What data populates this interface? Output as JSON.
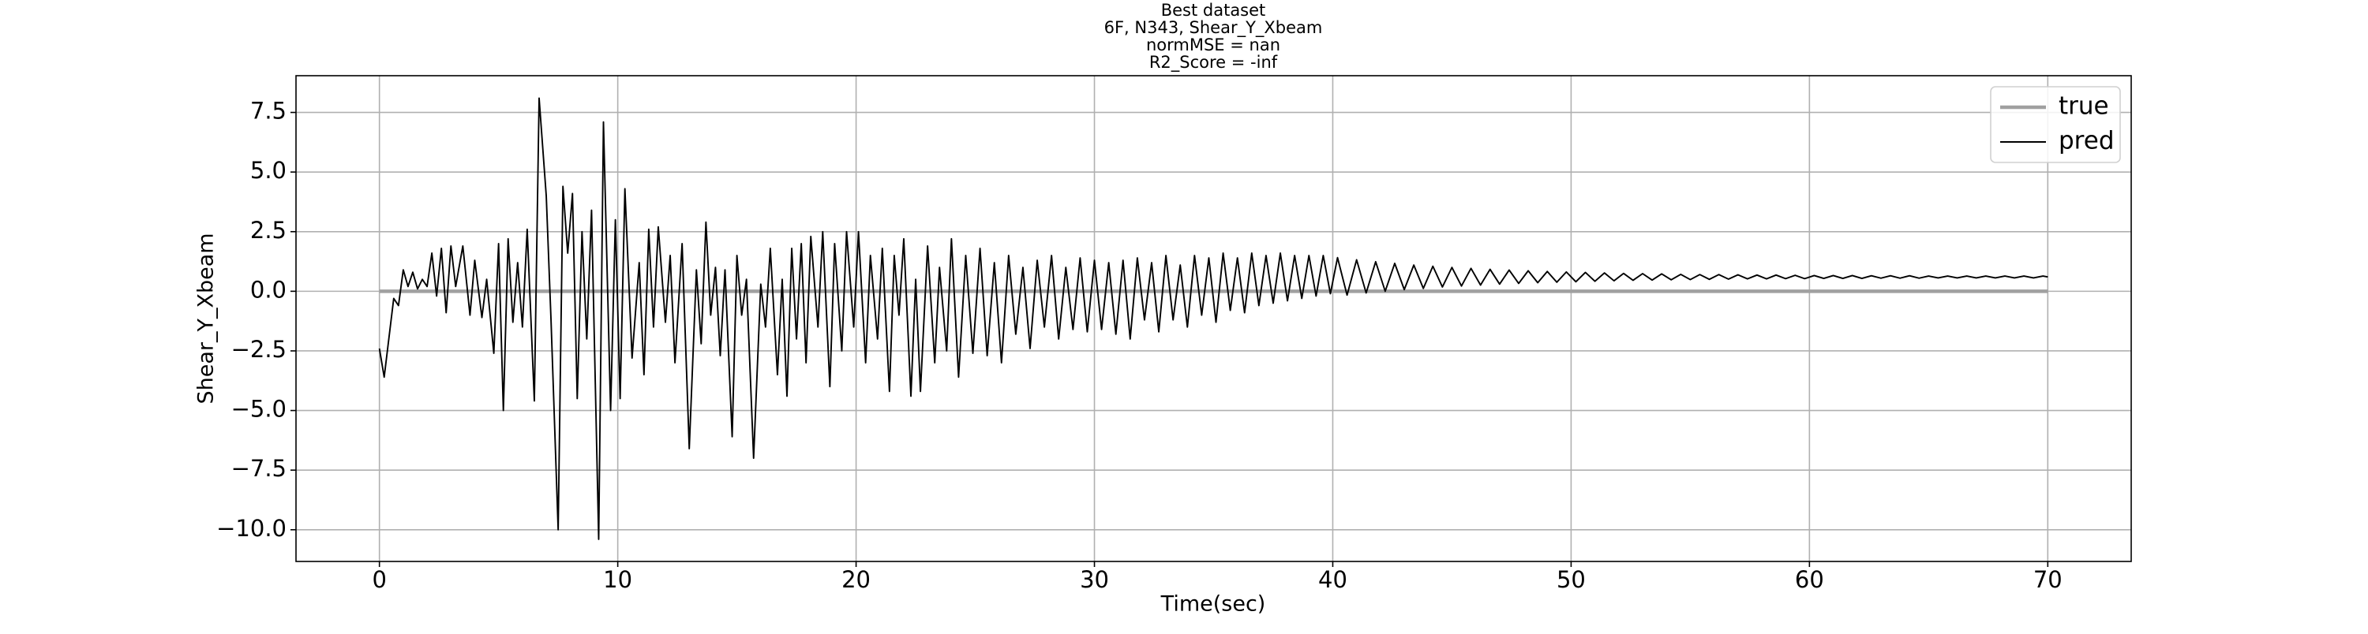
{
  "chart_data": {
    "type": "line",
    "title": [
      "Best dataset",
      "6F, N343, Shear_Y_Xbeam",
      "normMSE = nan",
      "R2_Score = -inf"
    ],
    "x_label": "Time(sec)",
    "y_label": "Shear_Y_Xbeam",
    "xlim": [
      -3.5,
      73.5
    ],
    "ylim": [
      -11.33,
      9.04
    ],
    "xticks": [
      0,
      10,
      20,
      30,
      40,
      50,
      60,
      70
    ],
    "yticks": [
      {
        "value": -10,
        "label": "−10.0"
      },
      {
        "value": -7.5,
        "label": "−7.5"
      },
      {
        "value": -5,
        "label": "−5.0"
      },
      {
        "value": -2.5,
        "label": "−2.5"
      },
      {
        "value": 0,
        "label": "0.0"
      },
      2.5,
      {
        "value": 5,
        "label": "5.0"
      },
      7.5
    ],
    "grid": true,
    "legend": "upper right",
    "series": [
      {
        "name": "true",
        "color": "#a0a0a0",
        "x": [
          0,
          70
        ],
        "values": [
          0,
          0
        ]
      },
      {
        "name": "pred",
        "color": "#000000",
        "x": [
          0,
          0.2,
          0.6,
          0.8,
          1.0,
          1.2,
          1.4,
          1.6,
          1.8,
          2.0,
          2.2,
          2.4,
          2.6,
          2.8,
          3.0,
          3.2,
          3.5,
          3.8,
          4.0,
          4.3,
          4.5,
          4.8,
          5.0,
          5.2,
          5.4,
          5.6,
          5.8,
          6.0,
          6.2,
          6.5,
          6.7,
          7.0,
          7.2,
          7.5,
          7.7,
          7.9,
          8.1,
          8.3,
          8.5,
          8.7,
          8.9,
          9.2,
          9.4,
          9.7,
          9.9,
          10.1,
          10.3,
          10.6,
          10.9,
          11.1,
          11.3,
          11.5,
          11.7,
          12.0,
          12.2,
          12.4,
          12.7,
          13.0,
          13.3,
          13.5,
          13.7,
          13.9,
          14.1,
          14.3,
          14.5,
          14.8,
          15.0,
          15.2,
          15.4,
          15.7,
          16.0,
          16.2,
          16.4,
          16.7,
          16.9,
          17.1,
          17.3,
          17.5,
          17.7,
          17.9,
          18.1,
          18.4,
          18.6,
          18.9,
          19.1,
          19.4,
          19.6,
          19.9,
          20.1,
          20.4,
          20.6,
          20.9,
          21.1,
          21.4,
          21.6,
          21.8,
          22.0,
          22.3,
          22.5,
          22.7,
          23.0,
          23.3,
          23.5,
          23.8,
          24.0,
          24.3,
          24.6,
          24.9,
          25.2,
          25.5,
          25.8,
          26.1,
          26.4,
          26.7,
          27.0,
          27.3,
          27.6,
          27.9,
          28.2,
          28.5,
          28.8,
          29.1,
          29.4,
          29.7,
          30.0,
          30.3,
          30.6,
          30.9,
          31.2,
          31.5,
          31.8,
          32.1,
          32.4,
          32.7,
          33.0,
          33.3,
          33.6,
          33.9,
          34.2,
          34.5,
          34.8,
          35.1,
          35.4,
          35.7,
          36.0,
          36.3,
          36.6,
          36.9,
          37.2,
          37.5,
          37.8,
          38.1,
          38.4,
          38.7,
          39.0,
          39.3,
          39.6,
          39.9,
          40.2,
          40.6,
          41.0,
          41.4,
          41.8,
          42.2,
          42.6,
          43.0,
          43.4,
          43.8,
          44.2,
          44.6,
          45.0,
          45.4,
          45.8,
          46.2,
          46.6,
          47.0,
          47.4,
          47.8,
          48.2,
          48.6,
          49.0,
          49.4,
          49.8,
          50.2,
          50.6,
          51.0,
          51.4,
          51.8,
          52.2,
          52.6,
          53.0,
          53.4,
          53.8,
          54.2,
          54.6,
          55.0,
          55.4,
          55.8,
          56.2,
          56.6,
          57.0,
          57.4,
          57.8,
          58.2,
          58.6,
          59.0,
          59.4,
          59.8,
          60.2,
          60.6,
          61.0,
          61.4,
          61.8,
          62.2,
          62.6,
          63.0,
          63.4,
          63.8,
          64.2,
          64.6,
          65.0,
          65.4,
          65.8,
          66.2,
          66.6,
          67.0,
          67.4,
          67.8,
          68.2,
          68.6,
          69.0,
          69.4,
          69.8,
          70.0
        ],
        "values": [
          -2.4,
          -3.6,
          -0.3,
          -0.6,
          0.9,
          0.2,
          0.8,
          0.1,
          0.5,
          0.2,
          1.6,
          -0.2,
          1.8,
          -0.9,
          1.9,
          0.2,
          1.9,
          -1.0,
          1.3,
          -1.1,
          0.5,
          -2.6,
          2.0,
          -5.0,
          2.2,
          -1.3,
          1.2,
          -1.5,
          2.6,
          -4.6,
          8.1,
          4.0,
          -1.2,
          -10.0,
          4.4,
          1.6,
          4.1,
          -4.5,
          2.5,
          -2.0,
          3.4,
          -10.4,
          7.1,
          -5.0,
          3.0,
          -4.5,
          4.3,
          -2.8,
          1.2,
          -3.5,
          2.6,
          -1.5,
          2.7,
          -1.3,
          1.5,
          -3.0,
          2.0,
          -6.6,
          0.9,
          -2.2,
          2.9,
          -1.0,
          1.0,
          -2.7,
          0.9,
          -6.1,
          1.5,
          -1.0,
          0.5,
          -7.0,
          0.3,
          -1.5,
          1.8,
          -3.5,
          0.5,
          -4.4,
          1.8,
          -2.0,
          2.0,
          -3.0,
          2.3,
          -1.5,
          2.5,
          -4.0,
          2.0,
          -2.5,
          2.5,
          -1.5,
          2.5,
          -3.0,
          1.5,
          -2.0,
          1.8,
          -4.2,
          1.5,
          -1.0,
          2.2,
          -4.4,
          0.5,
          -4.2,
          1.9,
          -3.0,
          1.0,
          -2.5,
          2.2,
          -3.6,
          1.5,
          -2.6,
          1.8,
          -2.7,
          1.2,
          -3.0,
          1.5,
          -1.8,
          1.0,
          -2.4,
          1.3,
          -1.5,
          1.5,
          -2.0,
          1.0,
          -1.6,
          1.4,
          -1.7,
          1.3,
          -1.6,
          1.2,
          -1.8,
          1.3,
          -2.0,
          1.4,
          -1.2,
          1.2,
          -1.7,
          1.5,
          -1.2,
          1.1,
          -1.5,
          1.5,
          -1.0,
          1.4,
          -1.3,
          1.6,
          -0.8,
          1.4,
          -0.9,
          1.6,
          -0.6,
          1.5,
          -0.5,
          1.6,
          -0.4,
          1.5,
          -0.3,
          1.5,
          -0.2,
          1.5,
          -0.1,
          1.41,
          -0.16,
          1.32,
          -0.07,
          1.24,
          0.0,
          1.17,
          0.07,
          1.1,
          0.12,
          1.05,
          0.18,
          1.0,
          0.22,
          0.96,
          0.26,
          0.92,
          0.3,
          0.89,
          0.33,
          0.86,
          0.36,
          0.83,
          0.38,
          0.81,
          0.4,
          0.79,
          0.42,
          0.77,
          0.44,
          0.75,
          0.46,
          0.74,
          0.47,
          0.73,
          0.48,
          0.71,
          0.49,
          0.7,
          0.5,
          0.7,
          0.51,
          0.69,
          0.52,
          0.68,
          0.52,
          0.68,
          0.53,
          0.67,
          0.53,
          0.66,
          0.54,
          0.66,
          0.54,
          0.66,
          0.54,
          0.65,
          0.55,
          0.65,
          0.55,
          0.65,
          0.55,
          0.64,
          0.56,
          0.64,
          0.56,
          0.64,
          0.56,
          0.64,
          0.56,
          0.64,
          0.56,
          0.64,
          0.56,
          0.64,
          0.6
        ]
      }
    ]
  }
}
